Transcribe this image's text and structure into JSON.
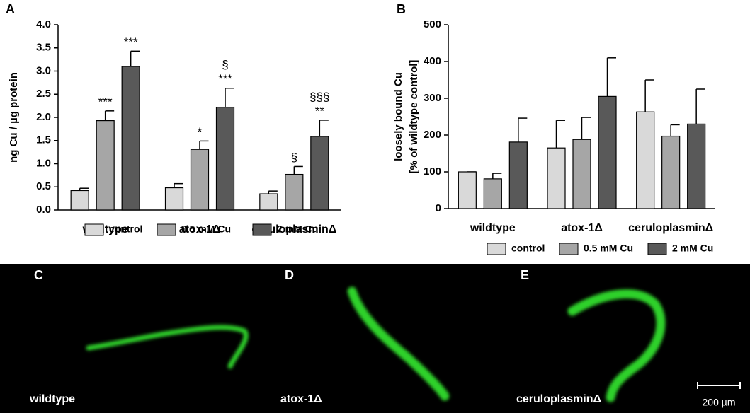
{
  "chart_data": [
    {
      "type": "bar",
      "panel": "A",
      "ylabel": [
        "ng Cu / µg protein"
      ],
      "categories": [
        "wildtype",
        "atox-1Δ",
        "ceruloplasminΔ"
      ],
      "series": [
        {
          "name": "control",
          "color": "#d9d9d9",
          "values": [
            0.42,
            0.48,
            0.35
          ],
          "errors": [
            0.05,
            0.09,
            0.06
          ]
        },
        {
          "name": "0.5 mM Cu",
          "color": "#a6a6a6",
          "values": [
            1.93,
            1.31,
            0.77
          ],
          "errors": [
            0.21,
            0.18,
            0.17
          ],
          "annotations": [
            [
              "***"
            ],
            [
              "*"
            ],
            [
              "§"
            ]
          ]
        },
        {
          "name": "2 mM Cu",
          "color": "#595959",
          "values": [
            3.1,
            2.22,
            1.59
          ],
          "errors": [
            0.33,
            0.41,
            0.35
          ],
          "annotations": [
            [
              "***"
            ],
            [
              "§",
              "***"
            ],
            [
              "§§§",
              "**"
            ]
          ]
        }
      ],
      "ylim": [
        0,
        4
      ],
      "yticks": [
        {
          "value": 0,
          "label": "0.0"
        },
        {
          "value": 0.5,
          "label": "0.5"
        },
        {
          "value": 1,
          "label": "1.0"
        },
        {
          "value": 1.5,
          "label": "1.5"
        },
        {
          "value": 2,
          "label": "2.0"
        },
        {
          "value": 2.5,
          "label": "2.5"
        },
        {
          "value": 3,
          "label": "3.0"
        },
        {
          "value": 3.5,
          "label": "3.5"
        },
        {
          "value": 4,
          "label": "4.0"
        }
      ],
      "legend": "bottom"
    },
    {
      "type": "bar",
      "panel": "B",
      "ylabel": [
        "loosely bound Cu",
        "[% of wildtype control]"
      ],
      "categories": [
        "wildtype",
        "atox-1Δ",
        "ceruloplasminΔ"
      ],
      "series": [
        {
          "name": "control",
          "color": "#d9d9d9",
          "values": [
            100,
            165,
            263
          ],
          "errors": [
            0,
            75,
            87
          ]
        },
        {
          "name": "0.5 mM Cu",
          "color": "#a6a6a6",
          "values": [
            81,
            188,
            197
          ],
          "errors": [
            15,
            60,
            31
          ]
        },
        {
          "name": "2 mM Cu",
          "color": "#595959",
          "values": [
            181,
            305,
            230
          ],
          "errors": [
            65,
            105,
            95
          ]
        }
      ],
      "ylim": [
        0,
        500
      ],
      "yticks": [
        0,
        100,
        200,
        300,
        400,
        500
      ],
      "legend": "bottom"
    }
  ],
  "panels": [
    {
      "label": "C",
      "caption": "wildtype"
    },
    {
      "label": "D",
      "caption": "atox-1Δ"
    },
    {
      "label": "E",
      "caption": "ceruloplasminΔ"
    }
  ],
  "scale_bar": "200 µm"
}
